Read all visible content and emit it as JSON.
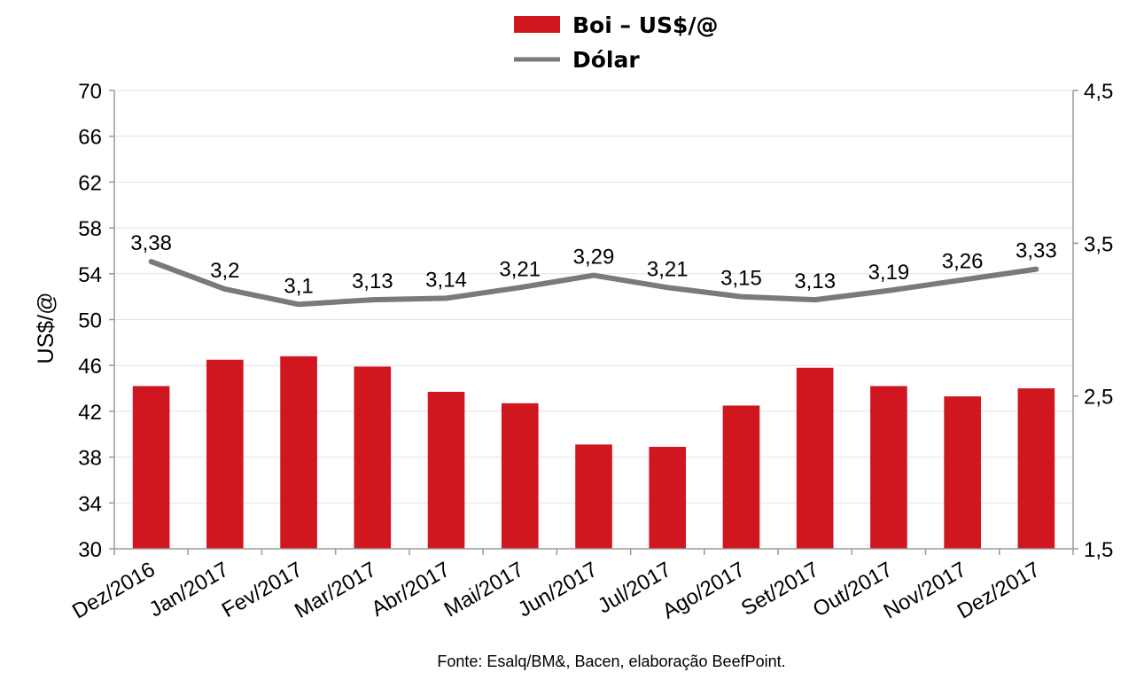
{
  "chart_data": {
    "type": "bar",
    "categories": [
      "Dez/2016",
      "Jan/2017",
      "Fev/2017",
      "Mar/2017",
      "Abr/2017",
      "Mai/2017",
      "Jun/2017",
      "Jul/2017",
      "Ago/2017",
      "Set/2017",
      "Out/2017",
      "Nov/2017",
      "Dez/2017"
    ],
    "series": [
      {
        "name": "Boi – US$/@",
        "type": "bar",
        "axis": "left",
        "color": "#d0161e",
        "values": [
          44.2,
          46.5,
          46.8,
          45.9,
          43.7,
          42.7,
          39.1,
          38.9,
          42.5,
          45.8,
          44.2,
          43.3,
          44.0
        ]
      },
      {
        "name": "Dólar",
        "type": "line",
        "axis": "right",
        "color": "#7a7a7a",
        "values": [
          3.38,
          3.2,
          3.1,
          3.13,
          3.14,
          3.21,
          3.29,
          3.21,
          3.15,
          3.13,
          3.19,
          3.26,
          3.33
        ],
        "data_labels": [
          "3,38",
          "3,2",
          "3,1",
          "3,13",
          "3,14",
          "3,21",
          "3,29",
          "3,21",
          "3,15",
          "3,13",
          "3,19",
          "3,26",
          "3,33"
        ]
      }
    ],
    "ylabel": "US$/@",
    "ylim": [
      30,
      70
    ],
    "yticks": [
      "30",
      "34",
      "38",
      "42",
      "46",
      "50",
      "54",
      "58",
      "62",
      "66",
      "70"
    ],
    "y2lim": [
      1.5,
      4.5
    ],
    "y2ticks": [
      "1,5",
      "2,5",
      "3,5",
      "4,5"
    ],
    "grid": true,
    "legend": "top-center",
    "source": "Fonte: Esalq/BM&, Bacen, elaboração BeefPoint."
  }
}
